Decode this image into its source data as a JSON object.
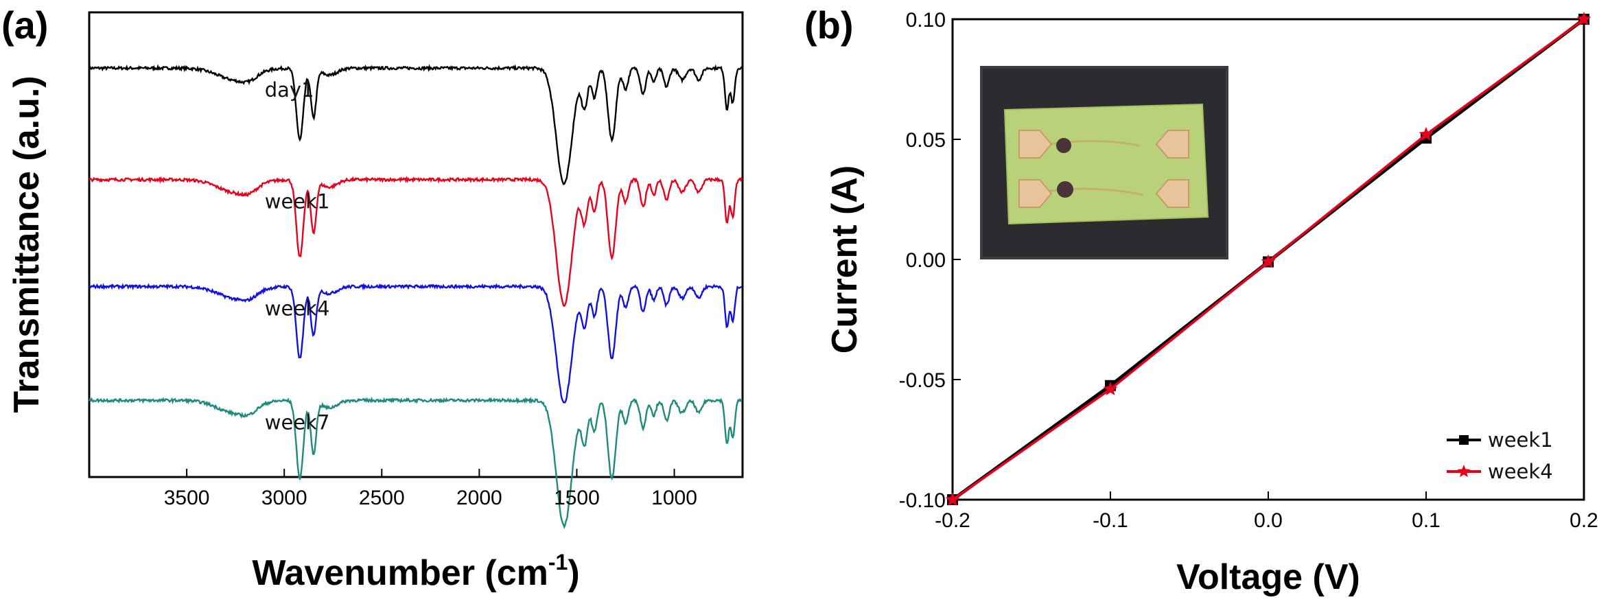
{
  "chart_data": [
    {
      "panel": "(a)",
      "type": "line",
      "xlabel_main": "Wavenumber (cm",
      "xlabel_sup": "-1",
      "xlabel_close": ")",
      "ylabel": "Transmittance (a.u.)",
      "x_reversed": true,
      "xlim": [
        4000,
        650
      ],
      "xticks": [
        3500,
        3000,
        2500,
        2000,
        1500,
        1000
      ],
      "ytick_labels": "none",
      "features": [
        {
          "center": 3250,
          "width": 90,
          "depth": 0.1
        },
        {
          "center": 3180,
          "width": 40,
          "depth": 0.04
        },
        {
          "center": 2920,
          "width": 18,
          "depth": 0.62
        },
        {
          "center": 2850,
          "width": 14,
          "depth": 0.42
        },
        {
          "center": 2770,
          "width": 40,
          "depth": 0.06
        },
        {
          "center": 1565,
          "width": 40,
          "depth": 1.0
        },
        {
          "center": 1460,
          "width": 16,
          "depth": 0.33
        },
        {
          "center": 1410,
          "width": 14,
          "depth": 0.25
        },
        {
          "center": 1320,
          "width": 20,
          "depth": 0.62
        },
        {
          "center": 1250,
          "width": 14,
          "depth": 0.18
        },
        {
          "center": 1160,
          "width": 14,
          "depth": 0.22
        },
        {
          "center": 1105,
          "width": 12,
          "depth": 0.12
        },
        {
          "center": 1040,
          "width": 14,
          "depth": 0.16
        },
        {
          "center": 960,
          "width": 18,
          "depth": 0.1
        },
        {
          "center": 875,
          "width": 16,
          "depth": 0.1
        },
        {
          "center": 730,
          "width": 10,
          "depth": 0.35
        },
        {
          "center": 700,
          "width": 10,
          "depth": 0.3
        }
      ],
      "series": [
        {
          "name": "day1",
          "color": "#000000",
          "baseline": 0.88,
          "scale": 0.25
        },
        {
          "name": "week1",
          "color": "#e8001c",
          "baseline": 0.64,
          "scale": 0.27
        },
        {
          "name": "week4",
          "color": "#1010e0",
          "baseline": 0.41,
          "scale": 0.25
        },
        {
          "name": "week7",
          "color": "#1e8a7e",
          "baseline": 0.165,
          "scale": 0.27
        }
      ]
    },
    {
      "panel": "(b)",
      "type": "line",
      "xlabel": "Voltage (V)",
      "ylabel": "Current (A)",
      "xlim": [
        -0.2,
        0.2
      ],
      "ylim": [
        -0.1,
        0.1
      ],
      "xticks": [
        "-0.2",
        "-0.1",
        "0.0",
        "0.1",
        "0.2"
      ],
      "yticks": [
        "-0.10",
        "-0.05",
        "0.00",
        "0.05",
        "0.10"
      ],
      "legend_position": "bottom-right",
      "inset_image": "photo-of-sensor-with-four-electrodes",
      "series": [
        {
          "name": "week1",
          "color": "#000000",
          "marker": "square",
          "x": [
            -0.2,
            -0.1,
            0.0,
            0.1,
            0.2
          ],
          "y": [
            -0.1,
            -0.0525,
            -0.001,
            0.0505,
            0.1
          ]
        },
        {
          "name": "week4",
          "color": "#e8001c",
          "marker": "star",
          "x": [
            -0.2,
            -0.1,
            0.0,
            0.1,
            0.2
          ],
          "y": [
            -0.1,
            -0.054,
            -0.001,
            0.052,
            0.1
          ]
        }
      ]
    }
  ]
}
